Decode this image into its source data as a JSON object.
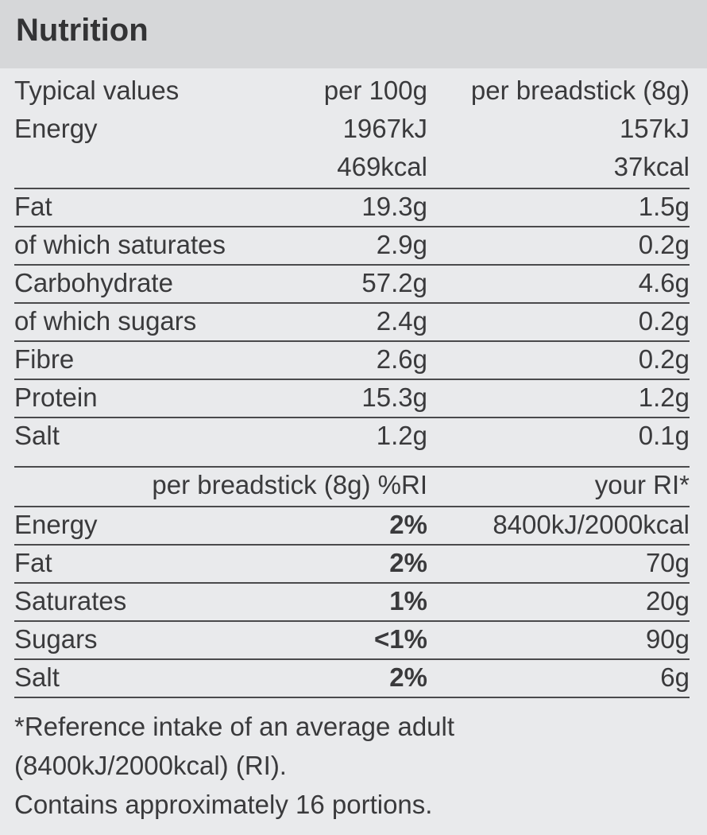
{
  "title": "Nutrition",
  "header": {
    "label": "Typical values",
    "col1": "per 100g",
    "col2": "per breadstick (8g)"
  },
  "energy": {
    "label": "Energy",
    "kj_100g": "1967kJ",
    "kj_stick": "157kJ",
    "kcal_100g": "469kcal",
    "kcal_stick": "37kcal"
  },
  "nutrients": [
    {
      "label": "Fat",
      "per_100g": "19.3g",
      "per_stick": "1.5g"
    },
    {
      "label": "of which saturates",
      "per_100g": "2.9g",
      "per_stick": "0.2g"
    },
    {
      "label": "Carbohydrate",
      "per_100g": "57.2g",
      "per_stick": "4.6g"
    },
    {
      "label": "of which sugars",
      "per_100g": "2.4g",
      "per_stick": "0.2g"
    },
    {
      "label": "Fibre",
      "per_100g": "2.6g",
      "per_stick": "0.2g"
    },
    {
      "label": "Protein",
      "per_100g": "15.3g",
      "per_stick": "1.2g"
    },
    {
      "label": "Salt",
      "per_100g": "1.2g",
      "per_stick": "0.1g"
    }
  ],
  "ri_header": {
    "col1": "per breadstick (8g) %RI",
    "col2": "your RI*"
  },
  "ri_rows": [
    {
      "label": "Energy",
      "percent": "2%",
      "your_ri": "8400kJ/2000kcal"
    },
    {
      "label": "Fat",
      "percent": "2%",
      "your_ri": "70g"
    },
    {
      "label": "Saturates",
      "percent": "1%",
      "your_ri": "20g"
    },
    {
      "label": "Sugars",
      "percent": "<1%",
      "your_ri": "90g"
    },
    {
      "label": "Salt",
      "percent": "2%",
      "your_ri": "6g"
    }
  ],
  "footnote": {
    "line1": "*Reference intake of an average adult",
    "line2": "(8400kJ/2000kcal) (RI).",
    "line3": "Contains approximately 16 portions."
  }
}
